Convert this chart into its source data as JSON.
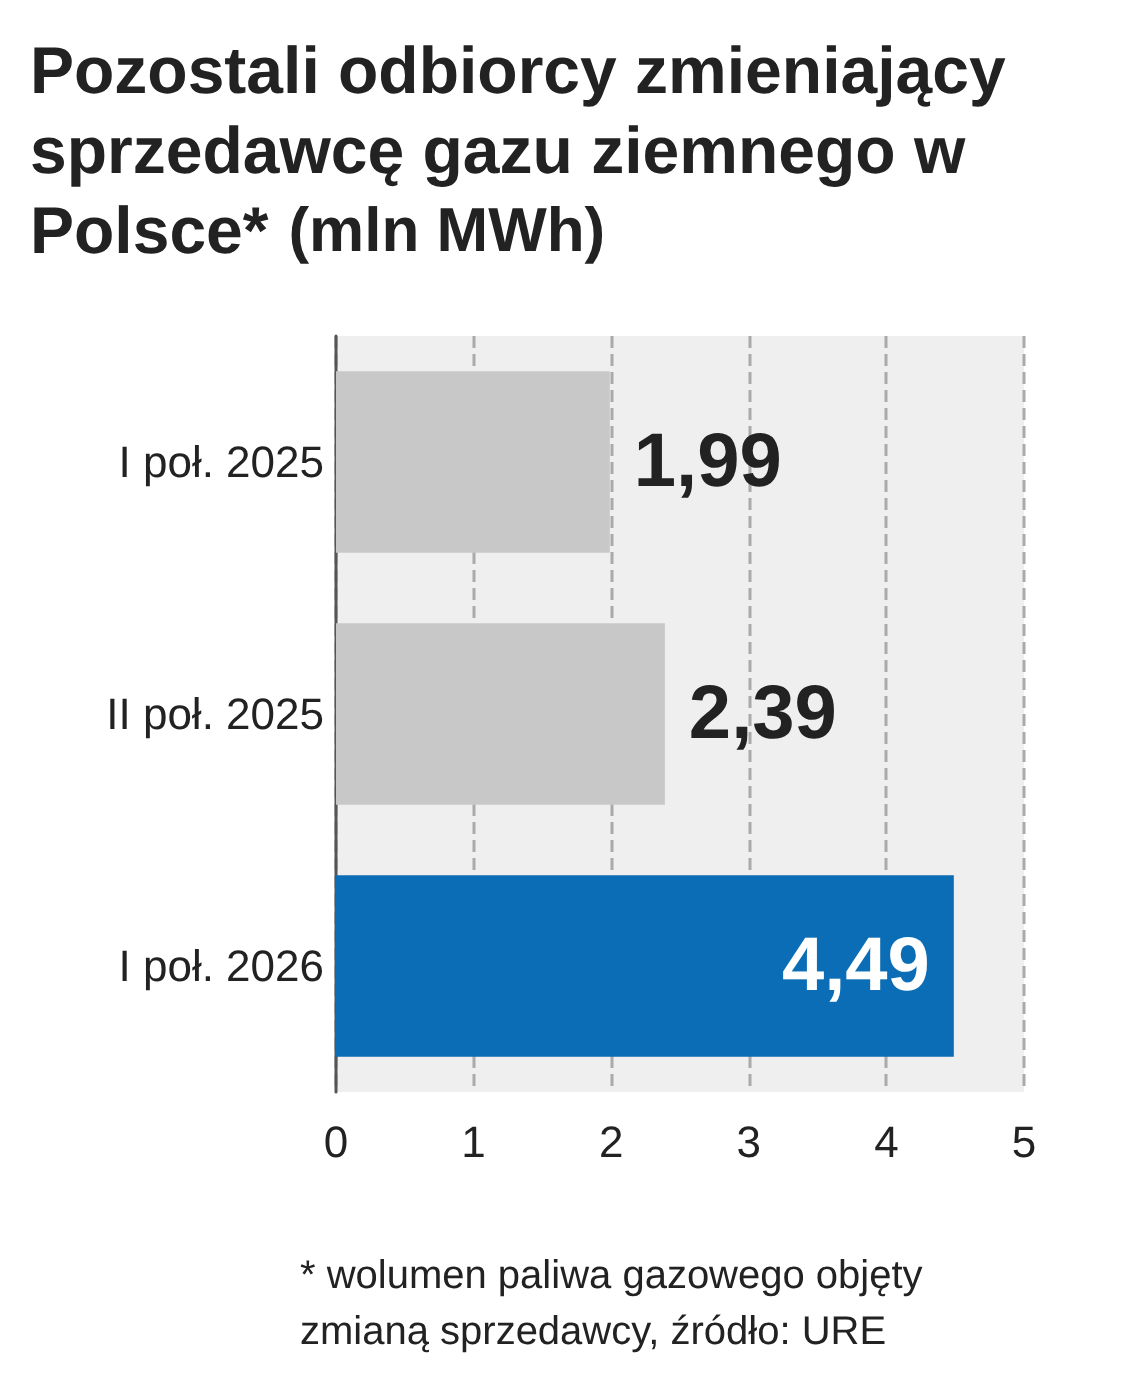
{
  "chart_data": {
    "type": "bar",
    "orientation": "horizontal",
    "title": "Pozostali odbiorcy zmieniający sprzedawcę gazu ziemnego w Polsce*",
    "subtitle": "(mln MWh)",
    "categories": [
      "I poł. 2025",
      "II poł. 2025",
      "I poł. 2026"
    ],
    "values": [
      1.99,
      2.39,
      4.49
    ],
    "colors": [
      "#c8c8c8",
      "#c8c8c8",
      "#0b6db5"
    ],
    "value_labels": [
      "1,99",
      "2,39",
      "4,49"
    ],
    "xlim": [
      0,
      5
    ],
    "xticks": [
      0,
      1,
      2,
      3,
      4,
      5
    ],
    "grid": "x",
    "annotations": [
      "* wolumen paliwa gazowego objęty zmianą sprzedawcy, źródło: URE"
    ]
  }
}
